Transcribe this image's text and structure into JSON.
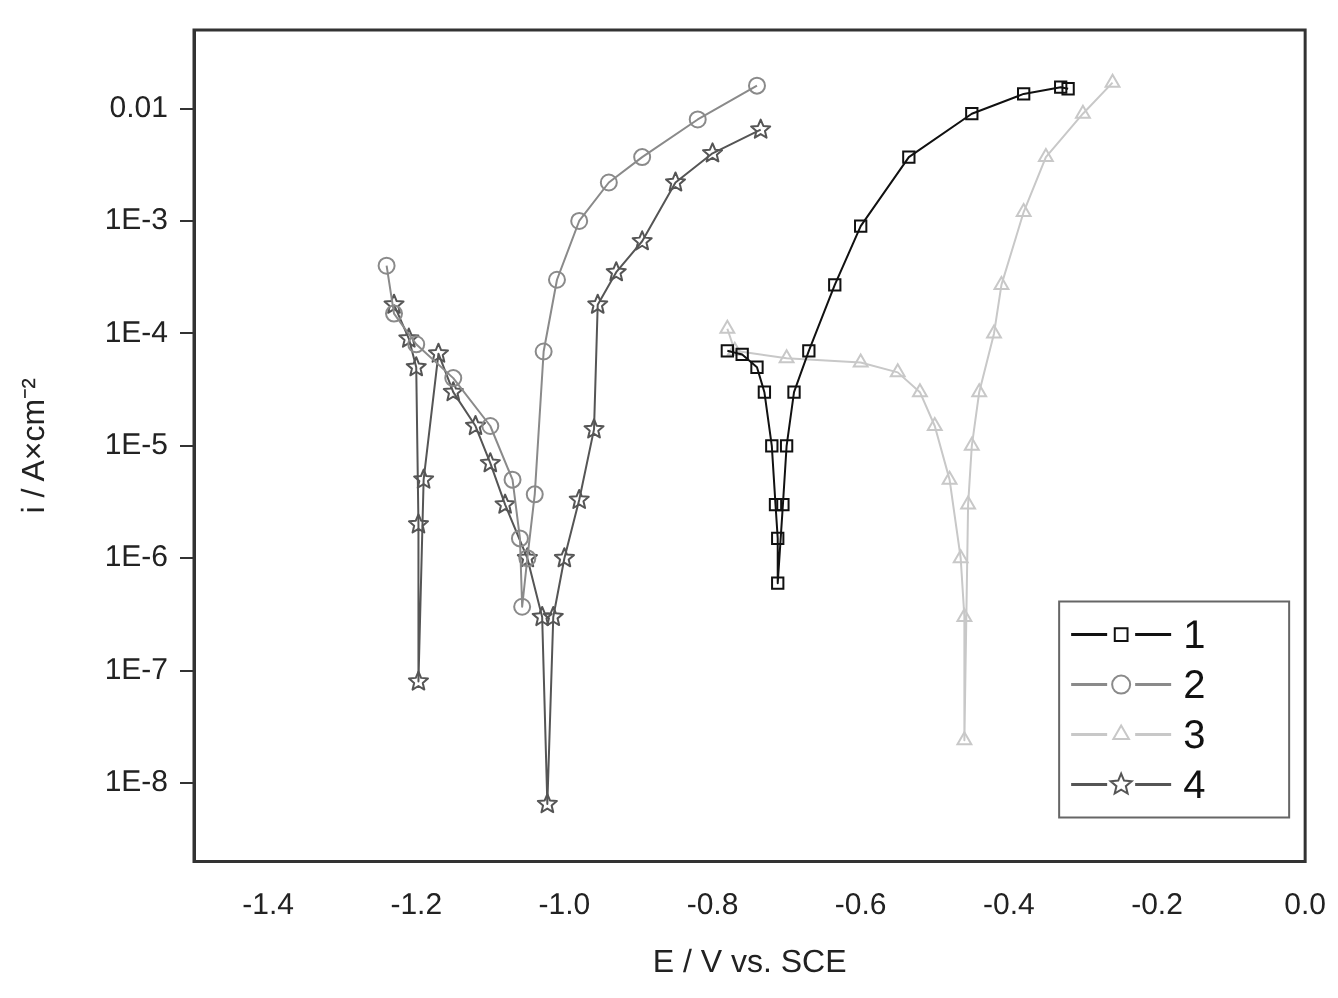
{
  "chart_data": {
    "type": "line",
    "xlabel": "E / V vs. SCE",
    "ylabel": "i / A×cm⁻²",
    "log": "y",
    "xlim": [
      -1.5,
      0.0
    ],
    "xticks": [
      -1.4,
      -1.2,
      {
        "value": -1.0,
        "label": "-1.0"
      },
      -0.8,
      -0.6,
      -0.4,
      -0.2,
      {
        "value": 0.0,
        "label": "0.0"
      }
    ],
    "ylim": [
      2e-09,
      0.05
    ],
    "yticks": [
      {
        "value": 1e-08,
        "label": "1E-8"
      },
      {
        "value": 1e-07,
        "label": "1E-7"
      },
      {
        "value": 1e-06,
        "label": "1E-6"
      },
      {
        "value": 1e-05,
        "label": "1E-5"
      },
      {
        "value": 0.0001,
        "label": "1E-4"
      },
      {
        "value": 0.001,
        "label": "1E-3"
      },
      0.01
    ],
    "legend": "bottom right",
    "line_style": "solid",
    "series": [
      {
        "name": "1",
        "color": "#111111",
        "marker": "square",
        "x": [
          -0.78,
          -0.76,
          -0.74,
          -0.73,
          -0.72,
          -0.715,
          -0.712,
          -0.712,
          -0.705,
          -0.7,
          -0.69,
          -0.67,
          -0.635,
          -0.6,
          -0.535,
          -0.45,
          -0.38,
          -0.33,
          -0.32
        ],
        "values": [
          7e-05,
          6.5e-05,
          5e-05,
          3e-05,
          1e-05,
          3e-06,
          1.5e-06,
          6e-07,
          3e-06,
          1e-05,
          3e-05,
          7e-05,
          0.00027,
          0.0009,
          0.0037,
          0.009,
          0.0135,
          0.0155,
          0.015
        ]
      },
      {
        "name": "2",
        "color": "#8a8a8a",
        "marker": "circle",
        "x": [
          -1.24,
          -1.23,
          -1.2,
          -1.15,
          -1.1,
          -1.07,
          -1.06,
          -1.057,
          -1.05,
          -1.04,
          -1.028,
          -1.01,
          -0.98,
          -0.94,
          -0.895,
          -0.82,
          -0.74
        ],
        "values": [
          0.0004,
          0.00015,
          8e-05,
          4e-05,
          1.5e-05,
          5e-06,
          1.5e-06,
          3.7e-07,
          1e-06,
          3.7e-06,
          6.9e-05,
          0.0003,
          0.001,
          0.0022,
          0.0037,
          0.008,
          0.016
        ]
      },
      {
        "name": "3",
        "color": "#c8c8c8",
        "marker": "triangle",
        "x": [
          -0.78,
          -0.77,
          -0.7,
          -0.6,
          -0.55,
          -0.52,
          -0.5,
          -0.48,
          -0.465,
          -0.46,
          -0.46,
          -0.455,
          -0.45,
          -0.44,
          -0.42,
          -0.41,
          -0.38,
          -0.35,
          -0.3,
          -0.26
        ],
        "values": [
          0.00011,
          7e-05,
          6e-05,
          5.5e-05,
          4.5e-05,
          3e-05,
          1.5e-05,
          5e-06,
          1e-06,
          3e-07,
          2.4e-08,
          3e-06,
          1e-05,
          3e-05,
          0.0001,
          0.00027,
          0.0012,
          0.0037,
          0.009,
          0.017
        ]
      },
      {
        "name": "4",
        "color": "#555555",
        "marker": "star",
        "x": [
          -1.23,
          -1.21,
          -1.2,
          -1.197,
          -1.197,
          -1.19,
          -1.17,
          -1.15,
          -1.12,
          -1.1,
          -1.08,
          -1.05,
          -1.03,
          -1.023,
          -1.015,
          -1.0,
          -0.98,
          -0.96,
          -0.955,
          -0.93,
          -0.895,
          -0.85,
          -0.8,
          -0.735
        ],
        "values": [
          0.00018,
          9e-05,
          5e-05,
          2e-06,
          8e-08,
          5e-06,
          6.6e-05,
          3e-05,
          1.5e-05,
          7e-06,
          3e-06,
          1e-06,
          3e-07,
          6.5e-09,
          3e-07,
          1e-06,
          3.3e-06,
          1.4e-05,
          0.00018,
          0.00035,
          0.00066,
          0.0022,
          0.004,
          0.0065
        ]
      }
    ]
  }
}
